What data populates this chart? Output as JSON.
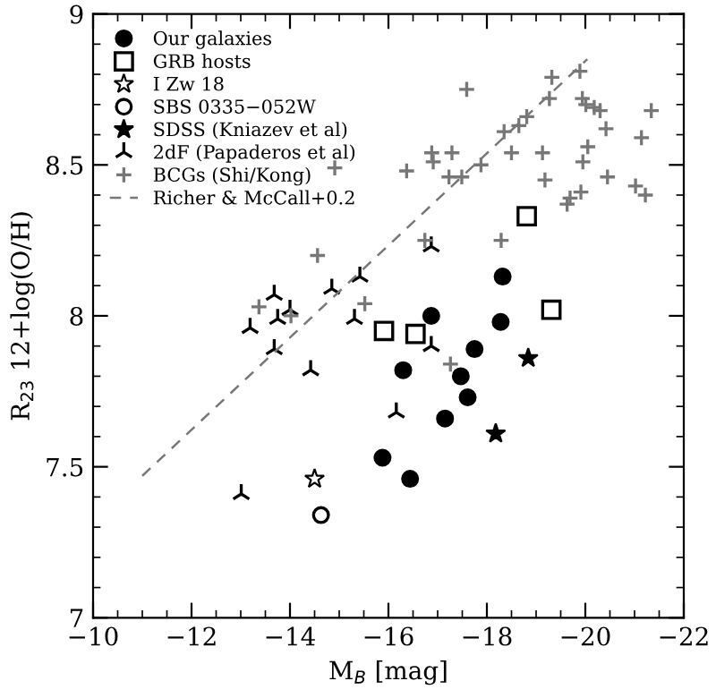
{
  "chart_data": {
    "type": "scatter",
    "xlabel": "M$_{B}$ [mag]",
    "ylabel": "R$_{23}$ 12+log(O/H)",
    "xlim": [
      -10,
      -22
    ],
    "ylim": [
      7,
      9
    ],
    "xticks": [
      {
        "value": -10,
        "label": "−10"
      },
      {
        "value": -12,
        "label": "−12"
      },
      {
        "value": -14,
        "label": "−14"
      },
      {
        "value": -16,
        "label": "−16"
      },
      {
        "value": -18,
        "label": "−18"
      },
      {
        "value": -20,
        "label": "−20"
      },
      {
        "value": -22,
        "label": "−22"
      }
    ],
    "yticks": [
      7,
      7.5,
      8,
      8.5,
      9
    ],
    "grid": false,
    "legend": "top left",
    "series": [
      {
        "name": "Our galaxies",
        "color": "#000000",
        "marker": "circle",
        "x": [
          -18.32,
          -16.87,
          -18.28,
          -17.75,
          -16.3,
          -17.47,
          -17.61,
          -17.15,
          -15.88,
          -16.44
        ],
        "values": [
          8.13,
          8.0,
          7.98,
          7.89,
          7.82,
          7.8,
          7.73,
          7.66,
          7.53,
          7.46
        ]
      },
      {
        "name": "GRB hosts",
        "color": "#ffffff",
        "marker": "square",
        "x": [
          -18.81,
          -19.31,
          -15.91,
          -16.55
        ],
        "values": [
          8.33,
          8.02,
          7.95,
          7.94
        ]
      },
      {
        "name": "I Zw 18",
        "color": "#ffffff",
        "marker": "star",
        "x": [
          -14.5
        ],
        "values": [
          7.46
        ]
      },
      {
        "name": "SBS 0335−052W",
        "color": "#ffffff",
        "marker": "circle",
        "x": [
          -14.63
        ],
        "values": [
          7.34
        ]
      },
      {
        "name": "SDSS (Kniazev et al)",
        "color": "#000000",
        "marker": "star",
        "x": [
          -18.84,
          -18.18
        ],
        "values": [
          7.86,
          7.61
        ]
      },
      {
        "name": "2dF (Papaderos et al)",
        "color": "#000000",
        "x": [
          -13.19,
          -13.75,
          -14.0,
          -13.68,
          -15.31,
          -14.42,
          -13.01,
          -13.68,
          -14.85,
          -15.42,
          -16.87,
          -16.87,
          -16.16
        ],
        "values": [
          7.96,
          7.99,
          8.02,
          7.89,
          7.99,
          7.82,
          7.41,
          8.07,
          8.09,
          8.13,
          8.23,
          7.9,
          7.68
        ]
      },
      {
        "name": "BCGs (Shi/Kong)",
        "color": "#777777",
        "marker": "cross",
        "x": [
          -14.56,
          -13.37,
          -15.52,
          -14.02,
          -14.91,
          -17.59,
          -19.32,
          -19.89,
          -19.27,
          -19.94,
          -20.01,
          -20.18,
          -20.3,
          -21.34,
          -18.81,
          -18.65,
          -18.35,
          -20.42,
          -21.14,
          -16.88,
          -17.29,
          -16.91,
          -18.5,
          -19.13,
          -20.05,
          -19.95,
          -17.88,
          -16.37,
          -17.23,
          -17.49,
          -19.18,
          -20.45,
          -21.02,
          -21.22,
          -19.91,
          -19.69,
          -19.63,
          -18.29,
          -16.74,
          -17.26
        ],
        "values": [
          8.2,
          8.03,
          8.04,
          8.0,
          8.49,
          8.75,
          8.79,
          8.81,
          8.72,
          8.72,
          8.7,
          8.69,
          8.68,
          8.68,
          8.66,
          8.63,
          8.61,
          8.62,
          8.59,
          8.54,
          8.54,
          8.51,
          8.54,
          8.54,
          8.56,
          8.51,
          8.5,
          8.48,
          8.46,
          8.46,
          8.45,
          8.46,
          8.43,
          8.4,
          8.41,
          8.39,
          8.37,
          8.25,
          8.25,
          7.84
        ]
      },
      {
        "name": "Richer & McCall+0.2",
        "type": "line",
        "color": "#777777",
        "marker": "none",
        "line_style": "dashed",
        "x": [
          -11.0,
          -20.04
        ],
        "values": [
          7.47,
          8.85
        ]
      }
    ]
  }
}
